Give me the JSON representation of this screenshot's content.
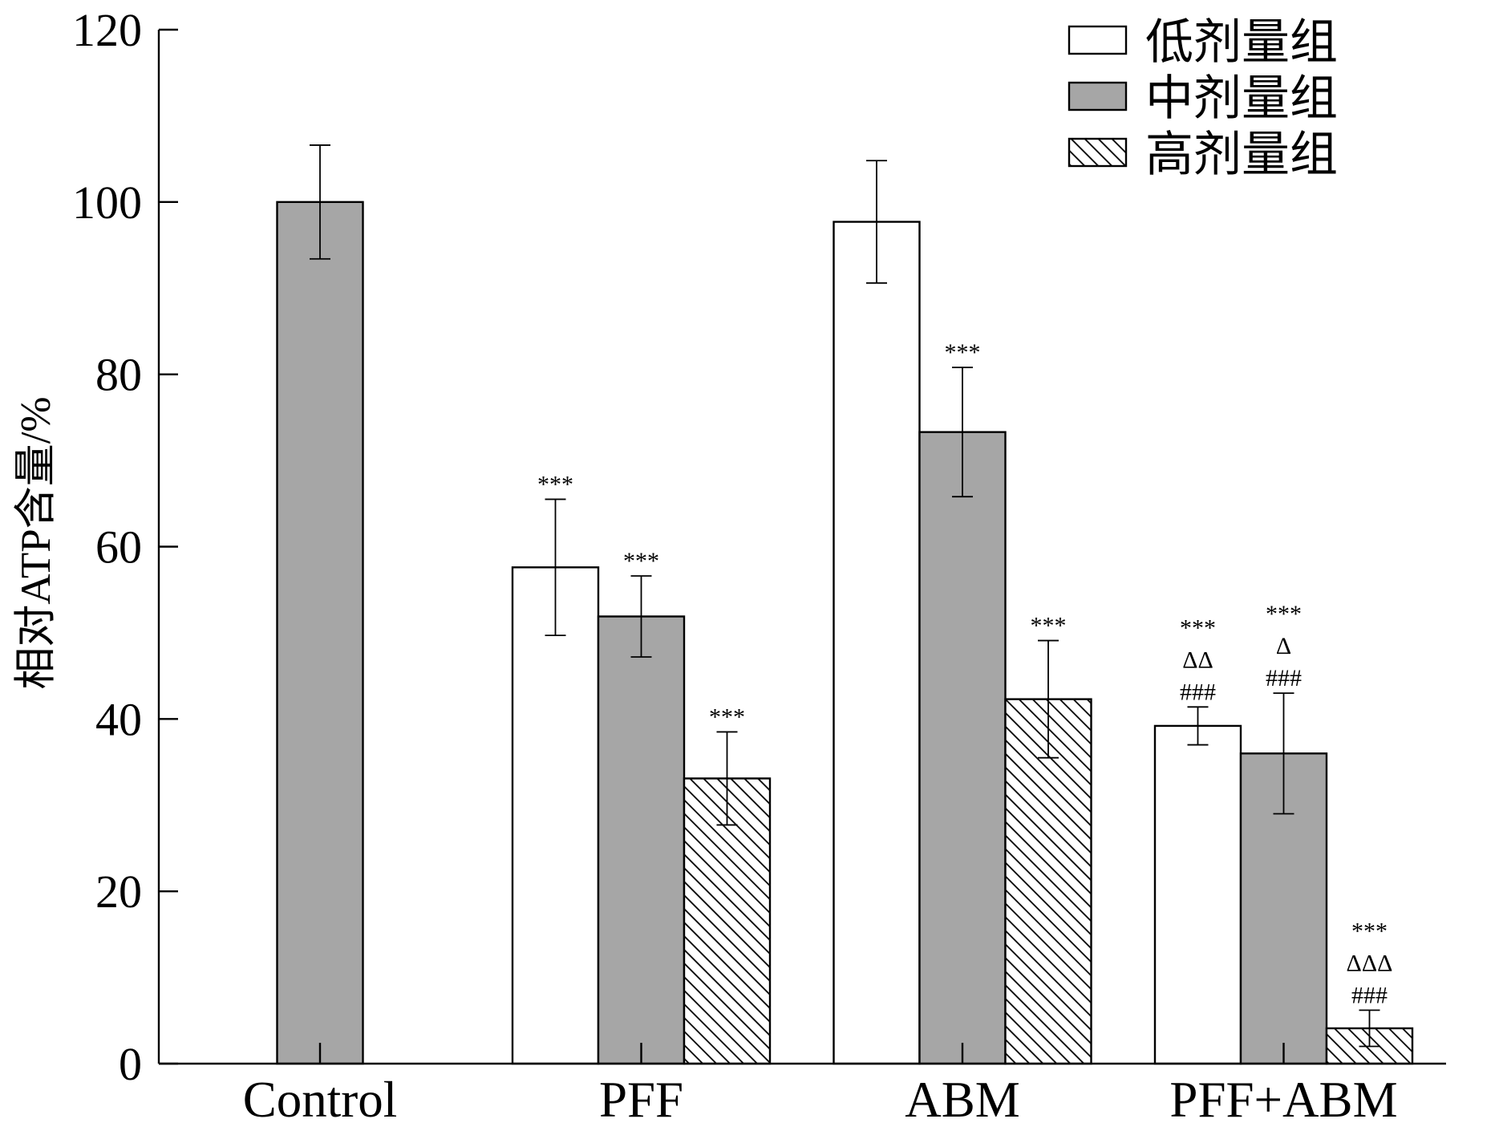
{
  "chart_data": {
    "type": "bar",
    "categories": [
      "Control",
      "PFF",
      "ABM",
      "PFF+ABM"
    ],
    "ylabel": "相对ATP含量/%",
    "ylim": [
      0,
      120
    ],
    "yticks": [
      0,
      20,
      40,
      60,
      80,
      100,
      120
    ],
    "grid": false,
    "legend_position": "top-right",
    "bar_outline": "#000000",
    "series": [
      {
        "name": "低剂量组",
        "fill": "#ffffff",
        "pattern": "none",
        "values": [
          null,
          57.6,
          97.7,
          39.2
        ],
        "errors": [
          null,
          7.9,
          7.1,
          2.2
        ],
        "annotations": [
          [],
          [
            "***"
          ],
          [],
          [
            "***",
            "ΔΔ",
            "###"
          ]
        ]
      },
      {
        "name": "中剂量组",
        "fill": "#a6a6a6",
        "pattern": "none",
        "values": [
          100,
          51.9,
          73.3,
          36.0
        ],
        "errors": [
          6.6,
          4.7,
          7.5,
          7.0
        ],
        "annotations": [
          [],
          [
            "***"
          ],
          [
            "***"
          ],
          [
            "***",
            "Δ",
            "###"
          ]
        ]
      },
      {
        "name": "高剂量组",
        "fill": "#ffffff",
        "pattern": "diagonal-hatch",
        "values": [
          null,
          33.1,
          42.3,
          4.1
        ],
        "errors": [
          null,
          5.4,
          6.8,
          2.1
        ],
        "annotations": [
          [],
          [
            "***"
          ],
          [
            "***"
          ],
          [
            "***",
            "ΔΔΔ",
            "###"
          ]
        ]
      }
    ]
  }
}
